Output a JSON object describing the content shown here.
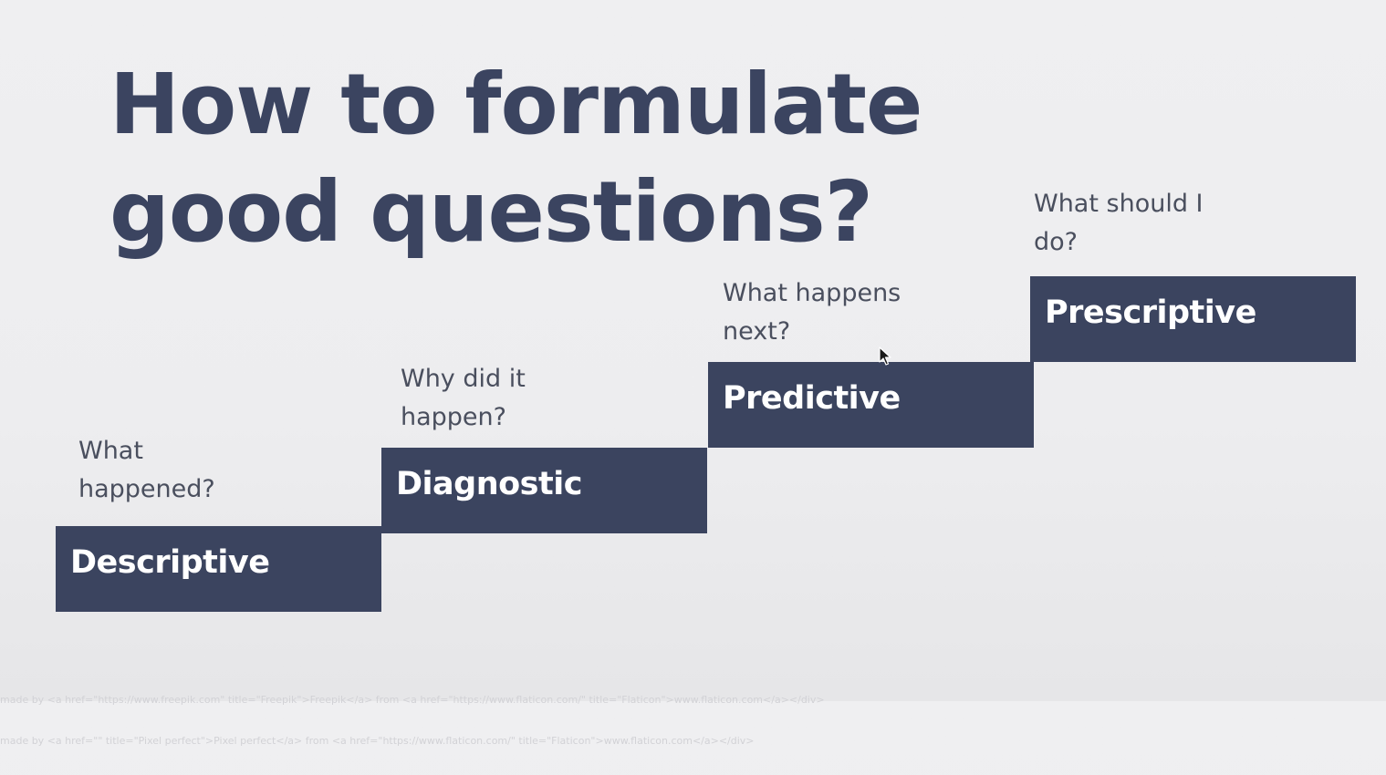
{
  "slide": {
    "title": "How to formulate good questions?",
    "steps": [
      {
        "question": "What\nhappened?",
        "label": "Descriptive"
      },
      {
        "question": "Why did it\nhappen?",
        "label": "Diagnostic"
      },
      {
        "question": "What happens\nnext?",
        "label": "Predictive"
      },
      {
        "question": "What should I\ndo?",
        "label": "Prescriptive"
      }
    ],
    "attribution": [
      "made by <a href=\"https://www.freepik.com\" title=\"Freepik\">Freepik</a> from <a href=\"https://www.flaticon.com/\" title=\"Flaticon\">www.flaticon.com</a></div>",
      "made by <a href=\"\" title=\"Pixel perfect\">Pixel perfect</a> from <a href=\"https://www.flaticon.com/\" title=\"Flaticon\">www.flaticon.com</a></div>"
    ]
  },
  "colors": {
    "step_fill": "#3b445f",
    "title": "#3b4460",
    "question_text": "#4a4f5e",
    "background": "#efeff1"
  },
  "icons": {
    "cursor": "mouse-pointer-icon"
  }
}
